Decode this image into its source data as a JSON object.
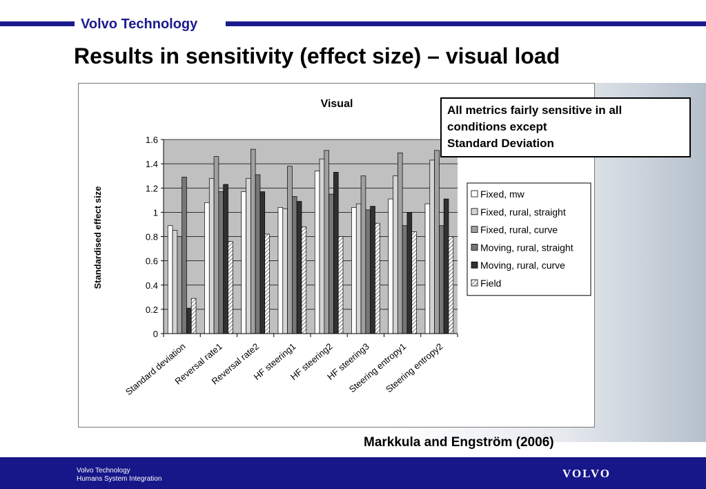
{
  "header": {
    "brand": "Volvo Technology",
    "title": "Results in sensitivity (effect size) – visual load"
  },
  "callout": {
    "lines": [
      "All metrics fairly sensitive in all",
      "conditions except",
      "Standard Deviation"
    ]
  },
  "citation": "Markkula and Engström (2006)",
  "footer": {
    "line1": "Volvo Technology",
    "line2": "Humans System Integration",
    "logo_text": "VOLVO"
  },
  "colors": {
    "brand_blue": "#1a1a8c",
    "plot_bg": "#c0c0c0"
  },
  "chart_data": {
    "type": "bar",
    "title": "Visual",
    "xlabel": "",
    "ylabel": "Standardised effect size",
    "ylim": [
      0,
      1.6
    ],
    "yticks": [
      "0",
      "0.2",
      "0.4",
      "0.6",
      "0.8",
      "1",
      "1.2",
      "1.4",
      "1.6"
    ],
    "grid": true,
    "legend_position": "right",
    "categories": [
      "Standard deviation",
      "Reversal rate1",
      "Reversal rate2",
      "HF steering1",
      "HF steering2",
      "HF steering3",
      "Steering entropy1",
      "Steering entropy2"
    ],
    "series": [
      {
        "name": "Fixed, mw",
        "color": "#ffffff",
        "pattern": "solid",
        "values": [
          0.89,
          1.08,
          1.17,
          1.04,
          1.34,
          1.04,
          1.11,
          1.07
        ]
      },
      {
        "name": "Fixed, rural, straight",
        "color": "#d4d4d4",
        "pattern": "solid",
        "values": [
          0.85,
          1.28,
          1.28,
          1.03,
          1.44,
          1.07,
          1.3,
          1.43
        ]
      },
      {
        "name": "Fixed, rural, curve",
        "color": "#a0a0a0",
        "pattern": "solid",
        "values": [
          0.8,
          1.46,
          1.52,
          1.38,
          1.51,
          1.3,
          1.49,
          1.51
        ]
      },
      {
        "name": "Moving, rural, straight",
        "color": "#767676",
        "pattern": "solid",
        "values": [
          1.29,
          1.17,
          1.31,
          1.13,
          1.15,
          1.02,
          0.89,
          0.89
        ]
      },
      {
        "name": "Moving, rural, curve",
        "color": "#303030",
        "pattern": "solid",
        "values": [
          0.21,
          1.23,
          1.17,
          1.09,
          1.33,
          1.05,
          1.0,
          1.11
        ]
      },
      {
        "name": "Field",
        "color": "#ffffff",
        "pattern": "hatch",
        "values": [
          0.29,
          0.76,
          0.82,
          0.88,
          0.8,
          0.91,
          0.84,
          0.8
        ]
      }
    ]
  }
}
